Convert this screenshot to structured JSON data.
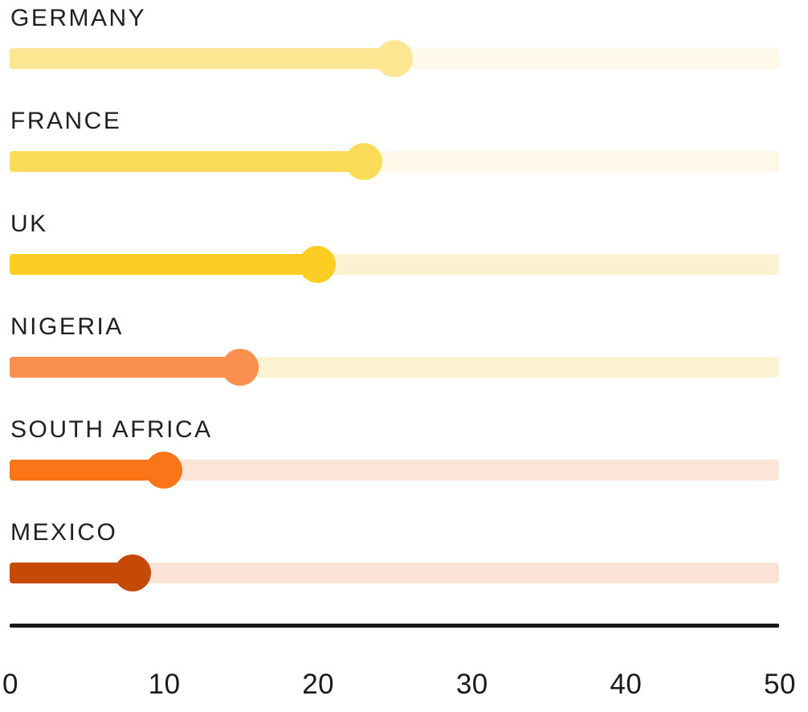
{
  "chart_data": {
    "type": "bar",
    "subtype": "lollipop",
    "title": "",
    "xlabel": "",
    "ylabel": "",
    "categories": [
      "GERMANY",
      "FRANCE",
      "UK",
      "NIGERIA",
      "SOUTH AFRICA",
      "MEXICO"
    ],
    "values": [
      25,
      23,
      20,
      15,
      10,
      8
    ],
    "xlim": [
      0,
      50
    ],
    "tick_labels": [
      "0",
      "10",
      "20",
      "30",
      "40",
      "50"
    ],
    "grid": false,
    "legend": false,
    "orientation": "horizontal",
    "bar_colors": [
      "#FCE692",
      "#FBDB57",
      "#FCCE24",
      "#FA8F4E",
      "#F97517",
      "#C54A08"
    ],
    "track_colors": [
      "#FEF9E8",
      "#FEF8E8",
      "#FBF2D1",
      "#FBF2D1",
      "#FAE5D7",
      "#FAE3D5"
    ],
    "label_color": "#202020",
    "axis_color": "#1a1a1a"
  }
}
